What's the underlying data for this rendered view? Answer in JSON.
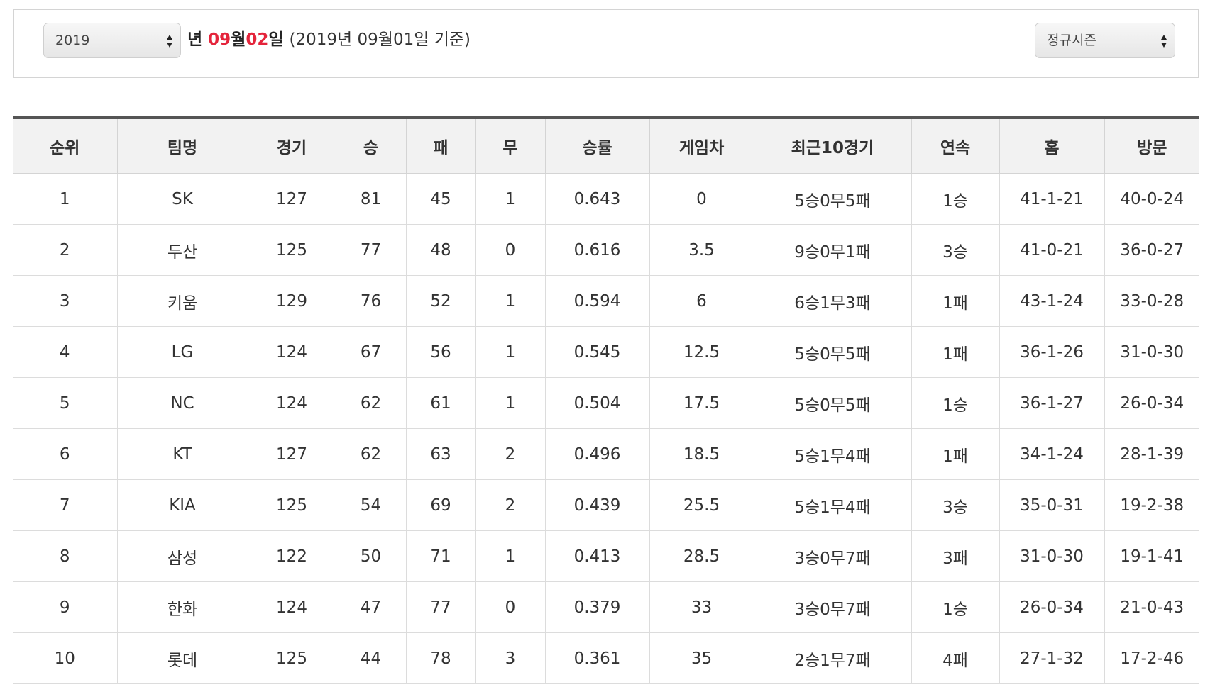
{
  "filter": {
    "year_value": "2019",
    "date_prefix": "년 ",
    "month": "09",
    "month_unit": "월",
    "day": "02",
    "day_unit": "일",
    "basis": "(2019년 09월01일 기준)",
    "season_value": "정규시즌"
  },
  "table": {
    "headers": [
      "순위",
      "팀명",
      "경기",
      "승",
      "패",
      "무",
      "승률",
      "게임차",
      "최근10경기",
      "연속",
      "홈",
      "방문"
    ],
    "rows": [
      [
        "1",
        "SK",
        "127",
        "81",
        "45",
        "1",
        "0.643",
        "0",
        "5승0무5패",
        "1승",
        "41-1-21",
        "40-0-24"
      ],
      [
        "2",
        "두산",
        "125",
        "77",
        "48",
        "0",
        "0.616",
        "3.5",
        "9승0무1패",
        "3승",
        "41-0-21",
        "36-0-27"
      ],
      [
        "3",
        "키움",
        "129",
        "76",
        "52",
        "1",
        "0.594",
        "6",
        "6승1무3패",
        "1패",
        "43-1-24",
        "33-0-28"
      ],
      [
        "4",
        "LG",
        "124",
        "67",
        "56",
        "1",
        "0.545",
        "12.5",
        "5승0무5패",
        "1패",
        "36-1-26",
        "31-0-30"
      ],
      [
        "5",
        "NC",
        "124",
        "62",
        "61",
        "1",
        "0.504",
        "17.5",
        "5승0무5패",
        "1승",
        "36-1-27",
        "26-0-34"
      ],
      [
        "6",
        "KT",
        "127",
        "62",
        "63",
        "2",
        "0.496",
        "18.5",
        "5승1무4패",
        "1패",
        "34-1-24",
        "28-1-39"
      ],
      [
        "7",
        "KIA",
        "125",
        "54",
        "69",
        "2",
        "0.439",
        "25.5",
        "5승1무4패",
        "3승",
        "35-0-31",
        "19-2-38"
      ],
      [
        "8",
        "삼성",
        "122",
        "50",
        "71",
        "1",
        "0.413",
        "28.5",
        "3승0무7패",
        "3패",
        "31-0-30",
        "19-1-41"
      ],
      [
        "9",
        "한화",
        "124",
        "47",
        "77",
        "0",
        "0.379",
        "33",
        "3승0무7패",
        "1승",
        "26-0-34",
        "21-0-43"
      ],
      [
        "10",
        "롯데",
        "125",
        "44",
        "78",
        "3",
        "0.361",
        "35",
        "2승1무7패",
        "4패",
        "27-1-32",
        "17-2-46"
      ]
    ]
  },
  "colors": {
    "accent_red": "#e4243b",
    "header_bg": "#f2f2f2",
    "border": "#d4d4d4",
    "table_top_border": "#555555"
  },
  "icons": {
    "select_arrows": "updown-arrows-icon"
  }
}
